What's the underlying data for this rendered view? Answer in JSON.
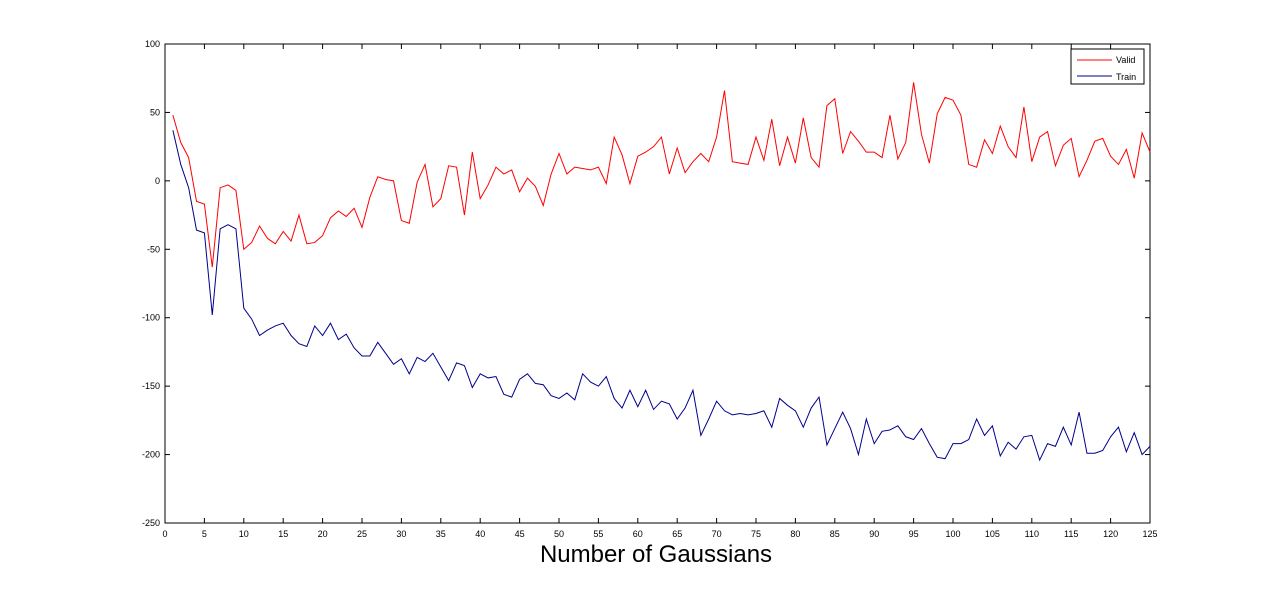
{
  "chart_data": {
    "type": "line",
    "title": "",
    "xlabel": "Number of Gaussians",
    "ylabel": "",
    "xlim": [
      0,
      125
    ],
    "ylim": [
      -250,
      100
    ],
    "xticks": [
      0,
      5,
      10,
      15,
      20,
      25,
      30,
      35,
      40,
      45,
      50,
      55,
      60,
      65,
      70,
      75,
      80,
      85,
      90,
      95,
      100,
      105,
      110,
      115,
      120,
      125
    ],
    "yticks": [
      100,
      50,
      0,
      -50,
      -100,
      -150,
      -200,
      -250
    ],
    "grid": false,
    "legend_position": "top-right",
    "x": [
      1,
      2,
      3,
      4,
      5,
      6,
      7,
      8,
      9,
      10,
      11,
      12,
      13,
      14,
      15,
      16,
      17,
      18,
      19,
      20,
      21,
      22,
      23,
      24,
      25,
      26,
      27,
      28,
      29,
      30,
      31,
      32,
      33,
      34,
      35,
      36,
      37,
      38,
      39,
      40,
      41,
      42,
      43,
      44,
      45,
      46,
      47,
      48,
      49,
      50,
      51,
      52,
      53,
      54,
      55,
      56,
      57,
      58,
      59,
      60,
      61,
      62,
      63,
      64,
      65,
      66,
      67,
      68,
      69,
      70,
      71,
      72,
      73,
      74,
      75,
      76,
      77,
      78,
      79,
      80,
      81,
      82,
      83,
      84,
      85,
      86,
      87,
      88,
      89,
      90,
      91,
      92,
      93,
      94,
      95,
      96,
      97,
      98,
      99,
      100,
      101,
      102,
      103,
      104,
      105,
      106,
      107,
      108,
      109,
      110,
      111,
      112,
      113,
      114,
      115,
      116,
      117,
      118,
      119,
      120,
      121,
      122,
      123,
      124,
      125
    ],
    "series": [
      {
        "name": "Valid",
        "color": "#ff0000",
        "values": [
          48,
          28,
          17,
          -15,
          -17,
          -63,
          -5,
          -3,
          -7,
          -50,
          -45,
          -33,
          -42,
          -46,
          -37,
          -44,
          -25,
          -46,
          -45,
          -40,
          -27,
          -22,
          -26,
          -20,
          -34,
          -12,
          3,
          1,
          0,
          -29,
          -31,
          -1,
          12,
          -19,
          -13,
          11,
          10,
          -25,
          21,
          -13,
          -3,
          10,
          5,
          8,
          -8,
          2,
          -4,
          -18,
          5,
          20,
          5,
          10,
          9,
          8,
          10,
          -2,
          32,
          19,
          -2,
          18,
          21,
          25,
          32,
          5,
          24,
          6,
          14,
          20,
          14,
          32,
          66,
          14,
          13,
          12,
          32,
          15,
          45,
          11,
          32,
          13,
          46,
          17,
          10,
          55,
          60,
          20,
          36,
          29,
          21,
          21,
          17,
          48,
          16,
          28,
          72,
          34,
          13,
          49,
          61,
          59,
          48,
          12,
          10,
          30,
          20,
          40,
          25,
          17,
          54,
          14,
          32,
          36,
          11,
          26,
          31,
          3,
          15,
          29,
          31,
          18,
          12,
          23,
          2,
          35,
          21
        ]
      },
      {
        "name": "Train",
        "color": "#00008b",
        "values": [
          37,
          12,
          -5,
          -36,
          -38,
          -98,
          -35,
          -32,
          -35,
          -93,
          -101,
          -113,
          -109,
          -106,
          -104,
          -113,
          -119,
          -121,
          -106,
          -113,
          -104,
          -116,
          -112,
          -122,
          -128,
          -128,
          -118,
          -126,
          -134,
          -130,
          -141,
          -129,
          -132,
          -126,
          -136,
          -146,
          -133,
          -135,
          -151,
          -141,
          -144,
          -143,
          -156,
          -158,
          -145,
          -141,
          -148,
          -149,
          -157,
          -159,
          -155,
          -160,
          -141,
          -147,
          -150,
          -143,
          -159,
          -166,
          -153,
          -165,
          -153,
          -167,
          -161,
          -163,
          -174,
          -166,
          -153,
          -186,
          -174,
          -161,
          -168,
          -171,
          -170,
          -171,
          -170,
          -168,
          -180,
          -159,
          -164,
          -168,
          -180,
          -166,
          -158,
          -193,
          -181,
          -169,
          -181,
          -200,
          -174,
          -192,
          -183,
          -182,
          -179,
          -187,
          -189,
          -181,
          -192,
          -202,
          -203,
          -192,
          -192,
          -189,
          -174,
          -186,
          -179,
          -201,
          -191,
          -196,
          -187,
          -186,
          -204,
          -192,
          -194,
          -180,
          -193,
          -169,
          -199,
          -199,
          -197,
          -187,
          -180,
          -198,
          -184,
          -200,
          -194
        ]
      }
    ]
  }
}
